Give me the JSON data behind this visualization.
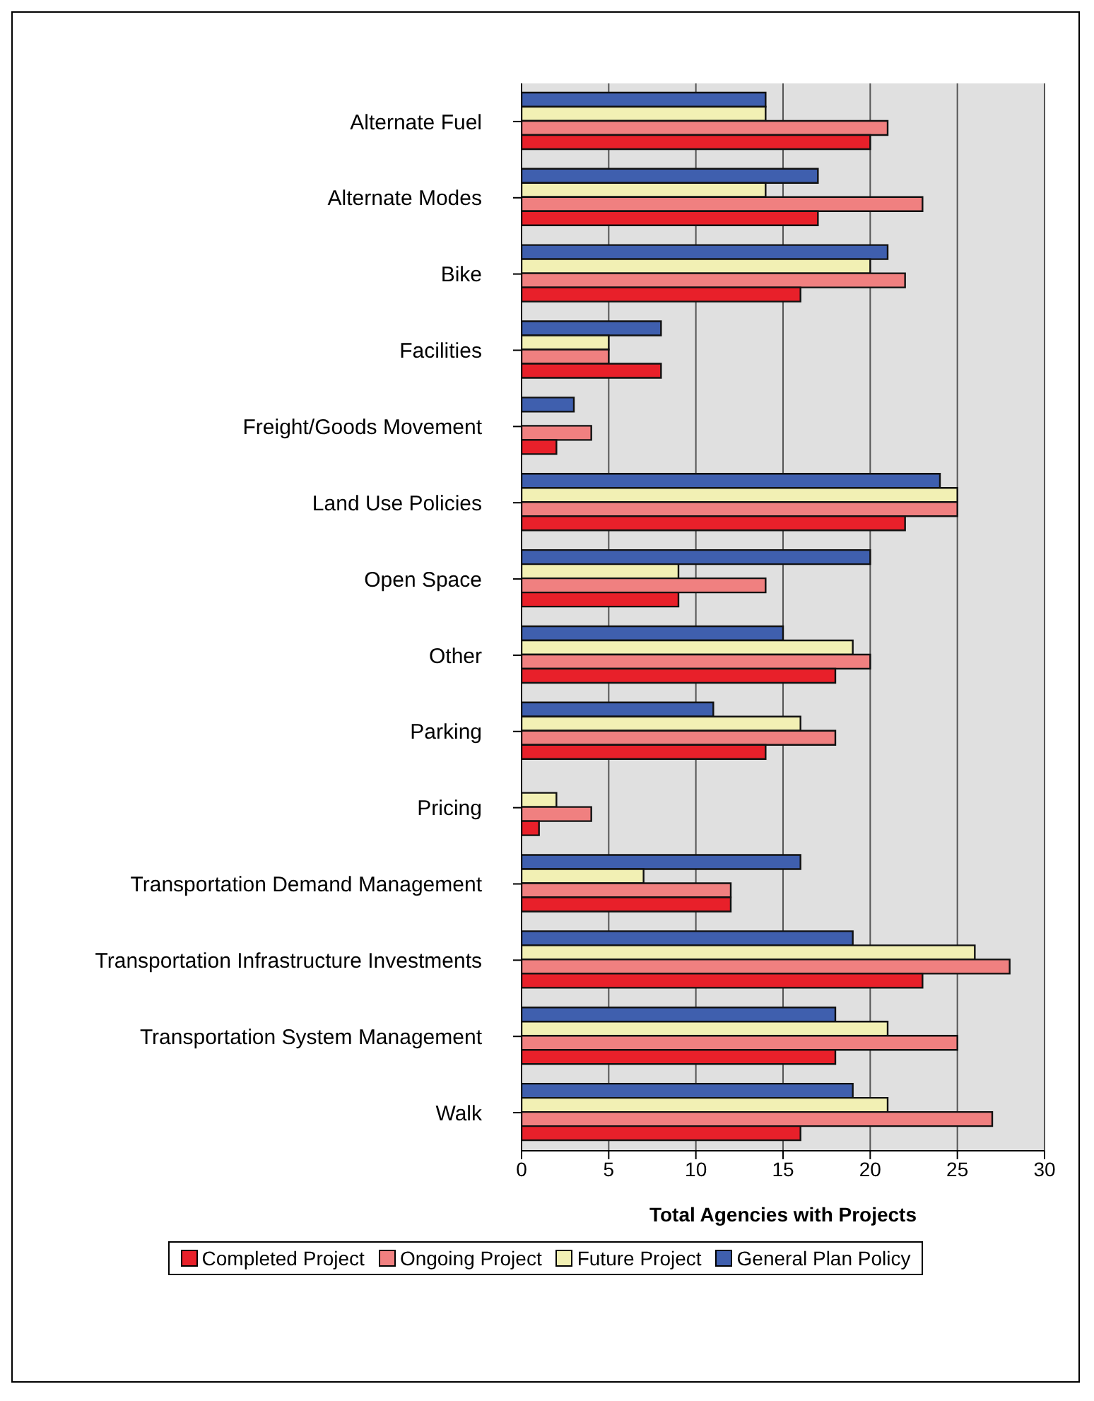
{
  "chart_data": {
    "type": "bar",
    "orientation": "horizontal",
    "xlabel": "Total Agencies with Projects",
    "categories": [
      "Alternate Fuel",
      "Alternate Modes",
      "Bike",
      "Facilities",
      "Freight/Goods Movement",
      "Land Use Policies",
      "Open Space",
      "Other",
      "Parking",
      "Pricing",
      "Transportation Demand Management",
      "Transportation Infrastructure Investments",
      "Transportation System Management",
      "Walk"
    ],
    "series": [
      {
        "name": "Completed Project",
        "color": "#e8202a",
        "values": [
          20,
          17,
          16,
          8,
          2,
          22,
          9,
          18,
          14,
          1,
          12,
          23,
          18,
          16
        ]
      },
      {
        "name": "Ongoing Project",
        "color": "#f08080",
        "values": [
          21,
          23,
          22,
          5,
          4,
          25,
          14,
          20,
          18,
          4,
          12,
          28,
          25,
          27
        ]
      },
      {
        "name": "Future Project",
        "color": "#f2f0b4",
        "values": [
          14,
          14,
          20,
          5,
          0,
          25,
          9,
          19,
          16,
          2,
          7,
          26,
          21,
          21
        ]
      },
      {
        "name": "General Plan Policy",
        "color": "#3f5fae",
        "values": [
          14,
          17,
          21,
          8,
          3,
          24,
          20,
          15,
          11,
          0,
          16,
          19,
          18,
          19
        ]
      }
    ],
    "xlim": [
      0,
      30
    ],
    "xticks": [
      0,
      5,
      10,
      15,
      20,
      25,
      30
    ],
    "grid": "x",
    "legend": "bottom"
  }
}
